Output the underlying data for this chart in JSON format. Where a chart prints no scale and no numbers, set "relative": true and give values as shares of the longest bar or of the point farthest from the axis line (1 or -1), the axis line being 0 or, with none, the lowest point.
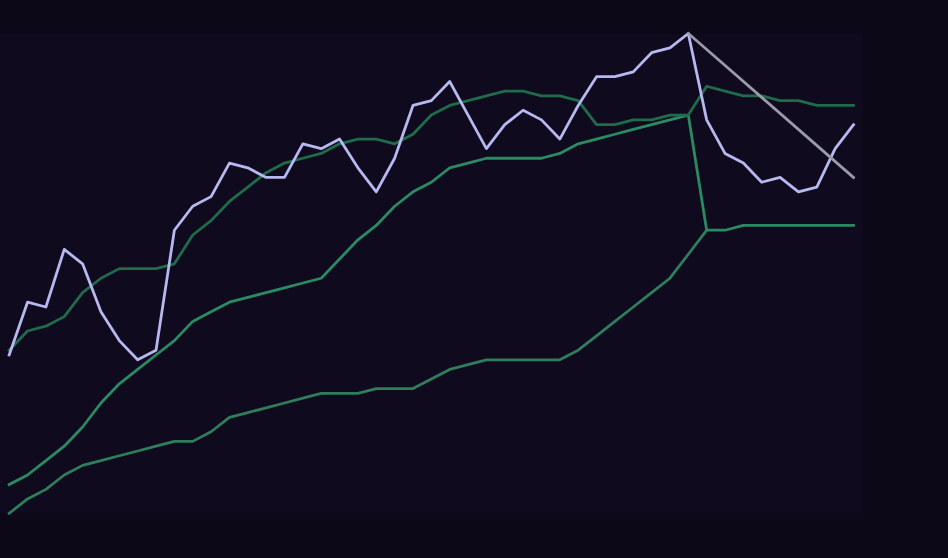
{
  "chart_data": {
    "type": "line",
    "relative": true,
    "grid": false,
    "legend": false,
    "categories": [
      null,
      null,
      null,
      null,
      null,
      null,
      null,
      null,
      null,
      null,
      null,
      null,
      null,
      null,
      null,
      null,
      null,
      null,
      null,
      null,
      null,
      null,
      null,
      null,
      null,
      null,
      null,
      null,
      null,
      null,
      null,
      null,
      null,
      null,
      null,
      null,
      null,
      null,
      null,
      null,
      null,
      null,
      null,
      null,
      null,
      null,
      null
    ],
    "series": [
      {
        "color": "#2e7d5b",
        "values": [
          0,
          0.03,
          0.05,
          0.08,
          0.1,
          0.11,
          0.12,
          0.13,
          0.14,
          0.15,
          0.15,
          0.17,
          0.2,
          0.21,
          0.22,
          0.23,
          0.24,
          0.25,
          0.25,
          0.25,
          0.26,
          0.26,
          0.26,
          0.28,
          0.3,
          0.31,
          0.32,
          0.32,
          0.32,
          0.32,
          0.32,
          0.34,
          0.37,
          0.4,
          0.43,
          0.46,
          0.49,
          0.54,
          0.59,
          null,
          null,
          null,
          null,
          null,
          null,
          null,
          null
        ]
      },
      {
        "color": "#2a8a62",
        "values": [
          0.06,
          0.08,
          0.11,
          0.14,
          0.18,
          0.23,
          0.27,
          0.3,
          0.33,
          0.36,
          0.4,
          0.42,
          0.44,
          0.45,
          0.46,
          0.47,
          0.48,
          0.49,
          0.53,
          0.57,
          0.6,
          0.64,
          0.67,
          0.69,
          0.72,
          0.73,
          0.74,
          0.74,
          0.74,
          0.74,
          0.75,
          0.77,
          0.78,
          0.79,
          0.8,
          0.81,
          0.82,
          0.83,
          0.59,
          0.59,
          0.6,
          0.6,
          0.6,
          0.6,
          0.6,
          0.6,
          0.6
        ]
      },
      {
        "color": "#1f6b4a",
        "values": [
          0.34,
          0.38,
          0.39,
          0.41,
          0.46,
          0.49,
          0.51,
          0.51,
          0.51,
          0.52,
          0.58,
          0.61,
          0.65,
          0.68,
          0.71,
          0.73,
          0.74,
          0.75,
          0.77,
          0.78,
          0.78,
          0.77,
          0.79,
          0.83,
          0.85,
          0.86,
          0.87,
          0.88,
          0.88,
          0.87,
          0.87,
          0.86,
          0.81,
          0.81,
          0.82,
          0.82,
          0.83,
          0.83,
          0.89,
          0.88,
          0.87,
          0.87,
          0.86,
          0.86,
          0.85,
          0.85,
          0.85
        ]
      },
      {
        "color": "#b8b8f0",
        "values": [
          0.33,
          0.44,
          0.43,
          0.55,
          0.52,
          0.42,
          0.36,
          0.32,
          0.34,
          0.59,
          0.64,
          0.66,
          0.73,
          0.72,
          0.7,
          0.7,
          0.77,
          0.76,
          0.78,
          0.72,
          0.67,
          0.74,
          0.85,
          0.86,
          0.9,
          0.83,
          0.76,
          0.81,
          0.84,
          0.82,
          0.78,
          0.85,
          0.91,
          0.91,
          0.92,
          0.96,
          0.97,
          1.0,
          0.82,
          0.75,
          0.73,
          0.69,
          0.7,
          0.67,
          0.68,
          0.76,
          0.81
        ]
      },
      {
        "color": "#9a9aa8",
        "values": [
          null,
          null,
          null,
          null,
          null,
          null,
          null,
          null,
          null,
          null,
          null,
          null,
          null,
          null,
          null,
          null,
          null,
          null,
          null,
          null,
          null,
          null,
          null,
          null,
          null,
          null,
          null,
          null,
          null,
          null,
          null,
          null,
          null,
          null,
          null,
          null,
          null,
          1.0,
          null,
          null,
          null,
          null,
          null,
          null,
          null,
          null,
          0.7
        ]
      }
    ]
  }
}
